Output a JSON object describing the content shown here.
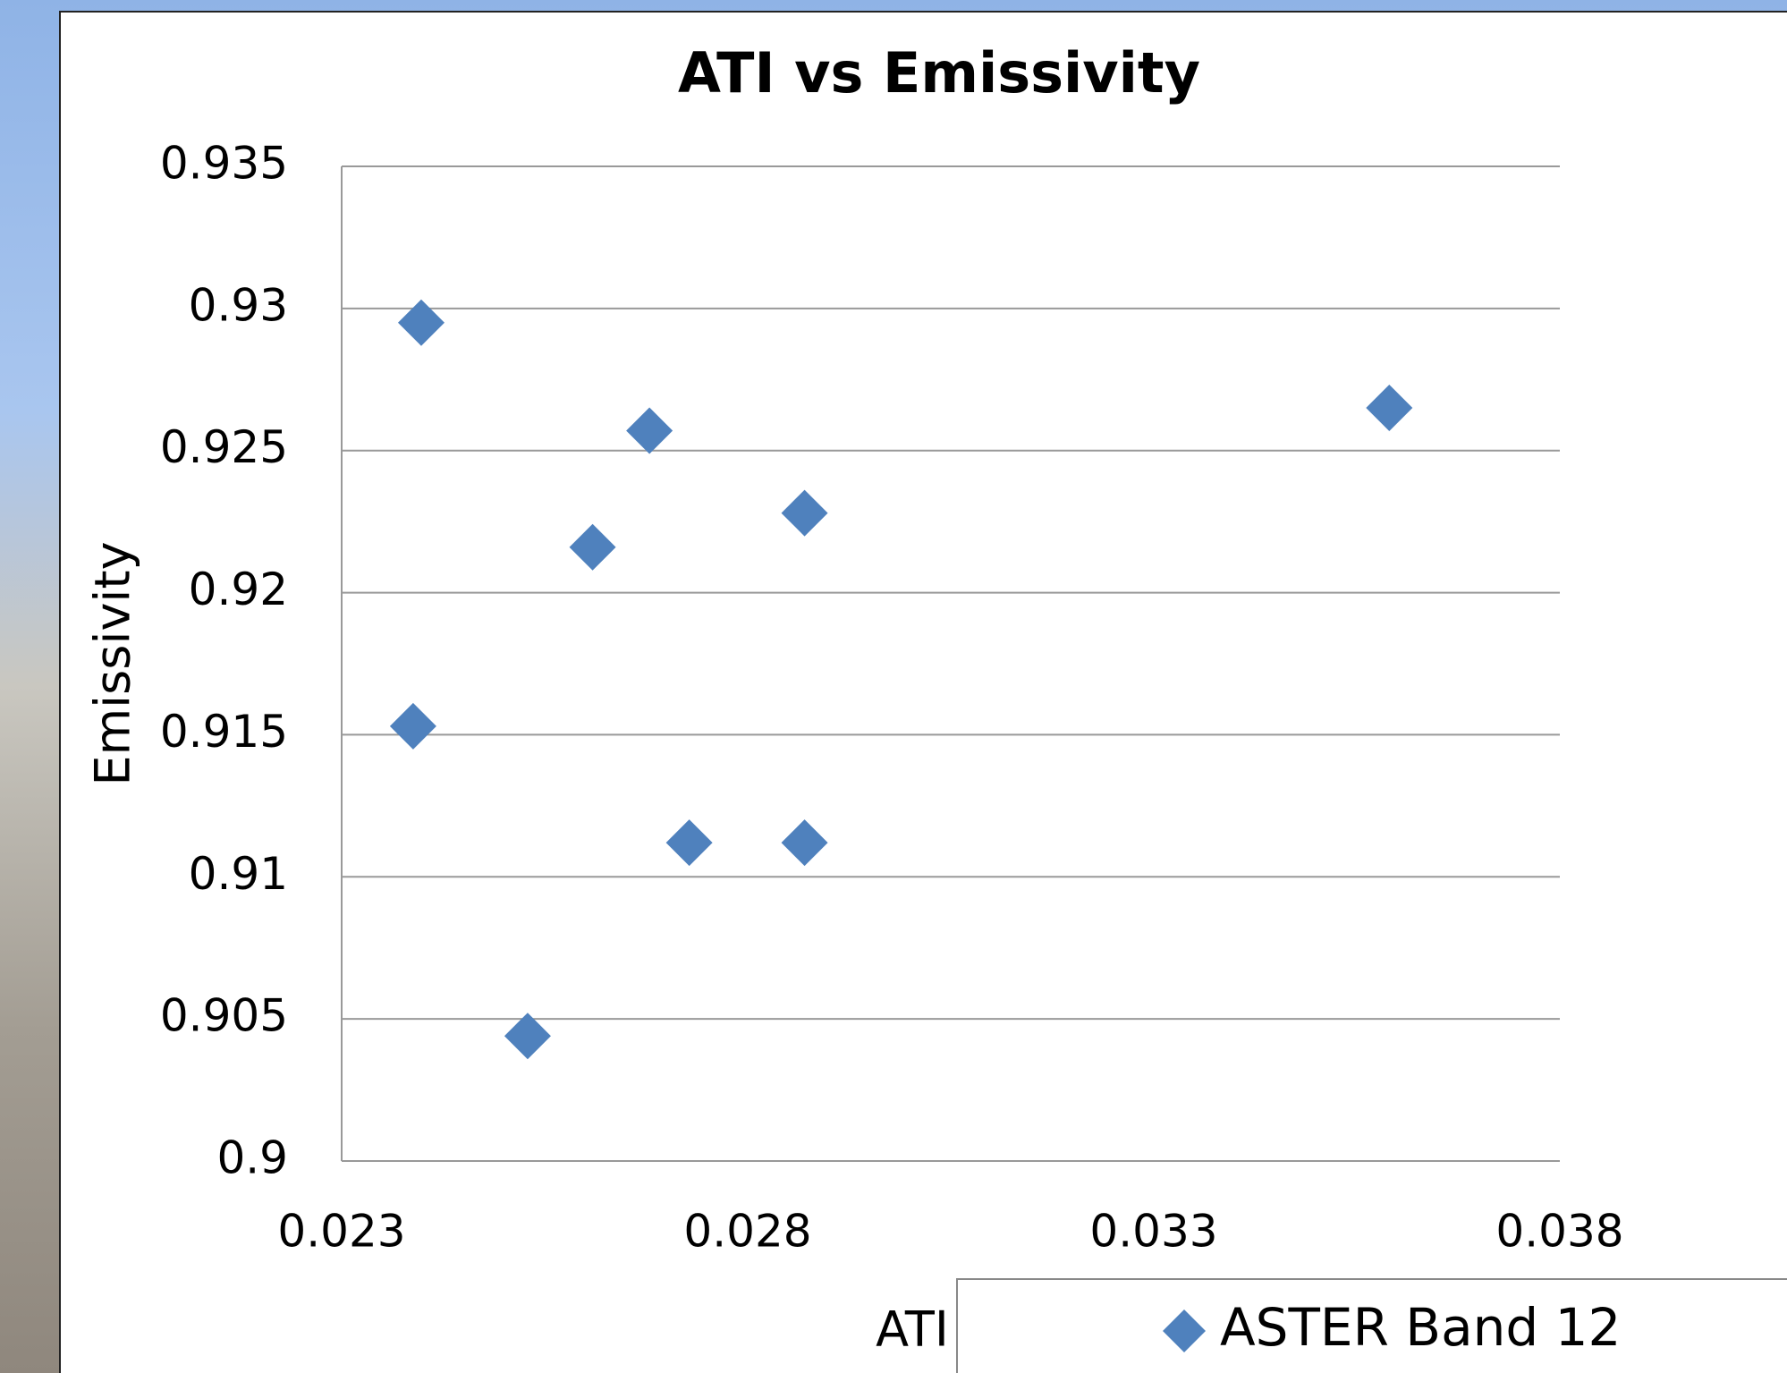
{
  "chart_data": {
    "type": "scatter",
    "title": "ATI vs Emissivity",
    "x_label": "ATI",
    "y_label": "Emissivity",
    "series": [
      {
        "name": "ASTER Band 12",
        "color": "#4f81bd",
        "x": [
          0.02398,
          0.02388,
          0.02529,
          0.02609,
          0.02679,
          0.02728,
          0.0287,
          0.0287,
          0.0359
        ],
        "values": [
          0.9295,
          0.9153,
          0.9044,
          0.9216,
          0.9257,
          0.9112,
          0.9228,
          0.9112,
          0.9265
        ]
      }
    ],
    "xlim": [
      0.023,
      0.038
    ],
    "xticks": [
      0.023,
      0.028,
      0.033,
      0.038
    ],
    "ylim": [
      0.9,
      0.935
    ],
    "yticks": [
      0.9,
      0.905,
      0.91,
      0.915,
      0.92,
      0.925,
      0.93,
      0.935
    ],
    "grid": true,
    "legend": "bottom-right"
  }
}
